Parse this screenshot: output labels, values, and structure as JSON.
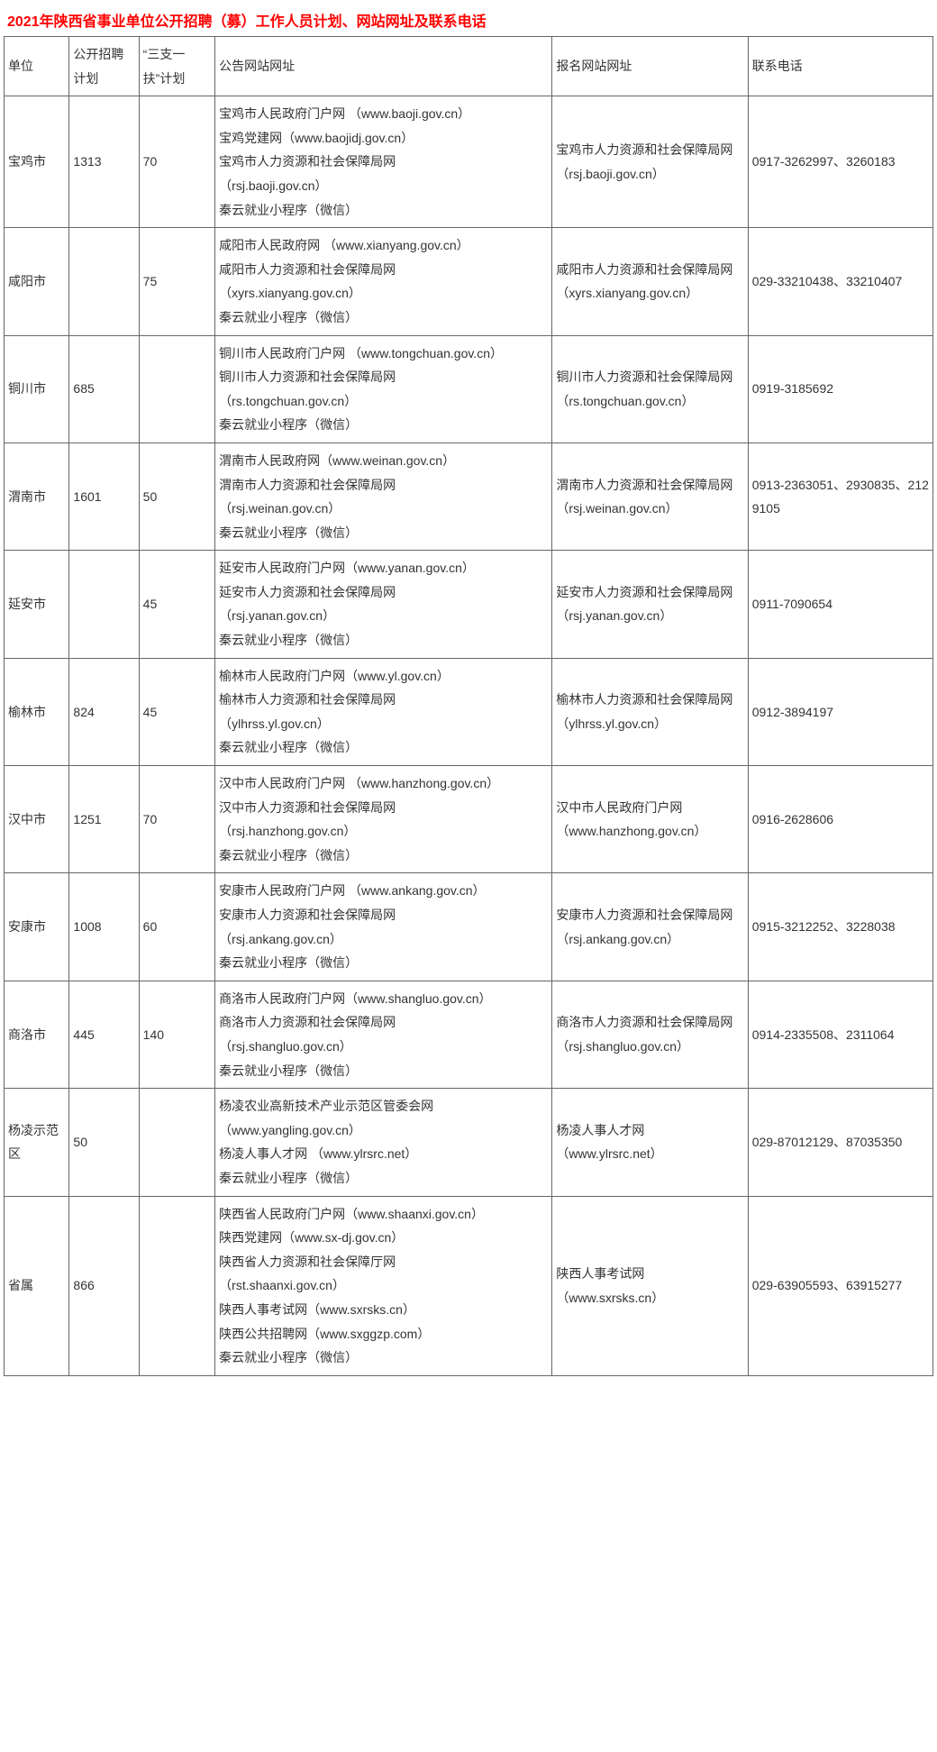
{
  "title": "2021年陕西省事业单位公开招聘（募）工作人员计划、网站网址及联系电话",
  "columns": [
    "单位",
    "公开招聘计划",
    "“三支一扶”计划",
    "公告网站网址",
    "报名网站网址",
    "联系电话"
  ],
  "rows": [
    {
      "unit": "宝鸡市",
      "plan1": "1313",
      "plan2": "70",
      "site1": "宝鸡市人民政府门户网 （www.baoji.gov.cn）\n宝鸡党建网（www.baojidj.gov.cn）\n宝鸡市人力资源和社会保障局网\n（rsj.baoji.gov.cn）\n秦云就业小程序（微信）",
      "site2": "宝鸡市人力资源和社会保障局网\n（rsj.baoji.gov.cn）",
      "phone": "0917-3262997、3260183"
    },
    {
      "unit": "咸阳市",
      "plan1": "",
      "plan2": "75",
      "site1": "咸阳市人民政府网 （www.xianyang.gov.cn）\n咸阳市人力资源和社会保障局网\n（xyrs.xianyang.gov.cn）\n秦云就业小程序（微信）",
      "site2": "咸阳市人力资源和社会保障局网\n（xyrs.xianyang.gov.cn）",
      "phone": "029-33210438、33210407"
    },
    {
      "unit": "铜川市",
      "plan1": "685",
      "plan2": "",
      "site1": "铜川市人民政府门户网 （www.tongchuan.gov.cn）\n铜川市人力资源和社会保障局网\n（rs.tongchuan.gov.cn）\n秦云就业小程序（微信）",
      "site2": "铜川市人力资源和社会保障局网\n（rs.tongchuan.gov.cn）",
      "phone": "0919-3185692"
    },
    {
      "unit": "渭南市",
      "plan1": "1601",
      "plan2": "50",
      "site1": "渭南市人民政府网（www.weinan.gov.cn）\n渭南市人力资源和社会保障局网\n（rsj.weinan.gov.cn）\n秦云就业小程序（微信）",
      "site2": "渭南市人力资源和社会保障局网\n（rsj.weinan.gov.cn）",
      "phone": "0913-2363051、2930835、2129105"
    },
    {
      "unit": "延安市",
      "plan1": "",
      "plan2": "45",
      "site1": "延安市人民政府门户网（www.yanan.gov.cn）\n延安市人力资源和社会保障局网\n（rsj.yanan.gov.cn）\n秦云就业小程序（微信）",
      "site2": "延安市人力资源和社会保障局网\n（rsj.yanan.gov.cn）",
      "phone": "0911-7090654"
    },
    {
      "unit": "榆林市",
      "plan1": "824",
      "plan2": "45",
      "site1": "榆林市人民政府门户网（www.yl.gov.cn）\n榆林市人力资源和社会保障局网\n（ylhrss.yl.gov.cn）\n秦云就业小程序（微信）",
      "site2": "榆林市人力资源和社会保障局网\n（ylhrss.yl.gov.cn）",
      "phone": "0912-3894197"
    },
    {
      "unit": "汉中市",
      "plan1": "1251",
      "plan2": "70",
      "site1": "汉中市人民政府门户网 （www.hanzhong.gov.cn）\n汉中市人力资源和社会保障局网\n（rsj.hanzhong.gov.cn）\n秦云就业小程序（微信）",
      "site2": "汉中市人民政府门户网\n（www.hanzhong.gov.cn）",
      "phone": "0916-2628606"
    },
    {
      "unit": "安康市",
      "plan1": "1008",
      "plan2": "60",
      "site1": "安康市人民政府门户网 （www.ankang.gov.cn）\n安康市人力资源和社会保障局网\n（rsj.ankang.gov.cn）\n秦云就业小程序（微信）",
      "site2": "安康市人力资源和社会保障局网\n（rsj.ankang.gov.cn）",
      "phone": "0915-3212252、3228038"
    },
    {
      "unit": "商洛市",
      "plan1": "445",
      "plan2": "140",
      "site1": "商洛市人民政府门户网（www.shangluo.gov.cn）\n商洛市人力资源和社会保障局网\n（rsj.shangluo.gov.cn）\n秦云就业小程序（微信）",
      "site2": "商洛市人力资源和社会保障局网\n（rsj.shangluo.gov.cn）",
      "phone": "0914-2335508、2311064"
    },
    {
      "unit": "杨凌示范区",
      "plan1": "50",
      "plan2": "",
      "site1": "杨凌农业高新技术产业示范区管委会网\n（www.yangling.gov.cn）\n杨凌人事人才网 （www.ylrsrc.net）\n秦云就业小程序（微信）",
      "site2": "杨凌人事人才网\n（www.ylrsrc.net）",
      "phone": "029-87012129、87035350"
    },
    {
      "unit": "省属",
      "plan1": "866",
      "plan2": "",
      "site1": "陕西省人民政府门户网（www.shaanxi.gov.cn）\n陕西党建网（www.sx-dj.gov.cn）\n陕西省人力资源和社会保障厅网\n（rst.shaanxi.gov.cn）\n陕西人事考试网（www.sxrsks.cn）\n陕西公共招聘网（www.sxggzp.com）\n秦云就业小程序（微信）",
      "site2": "陕西人事考试网\n（www.sxrsks.cn）",
      "phone": "029-63905593、63915277"
    }
  ],
  "style": {
    "title_color": "#ff0000",
    "border_color": "#666666",
    "font_size_body": 14,
    "font_size_title": 16,
    "background": "#ffffff",
    "text_color": "#333333"
  }
}
